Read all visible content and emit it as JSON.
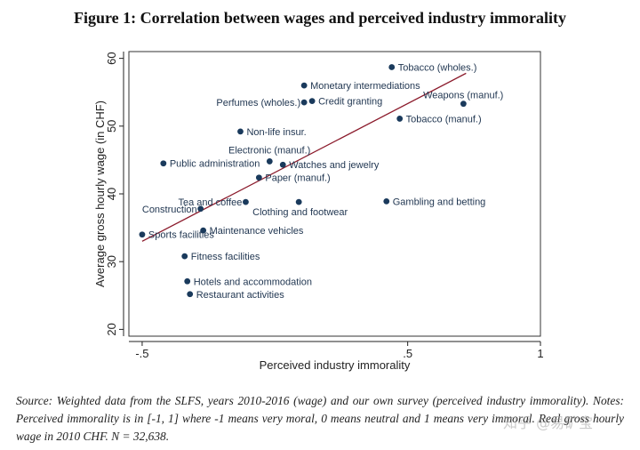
{
  "title": "Figure 1: Correlation between wages and perceived industry immorality",
  "chart_data": {
    "type": "scatter",
    "xlabel": "Perceived industry immorality",
    "ylabel": "Average gross hourly wage (in CHF)",
    "xlim": [
      -0.55,
      1.0
    ],
    "ylim": [
      19,
      61
    ],
    "xticks": [
      -0.5,
      0.5,
      1
    ],
    "xtick_labels": [
      "-.5",
      ".5",
      "1"
    ],
    "yticks": [
      20,
      30,
      40,
      50,
      60
    ],
    "grid": false,
    "marker_color": "#1a3a5c",
    "fit_line_color": "#8b1a2b",
    "fit_line": {
      "x": [
        -0.5,
        0.72
      ],
      "y": [
        33.0,
        57.8
      ]
    },
    "points": [
      {
        "label": "Tobacco (wholes.)",
        "x": 0.44,
        "y": 58.7
      },
      {
        "label": "Monetary intermediations",
        "x": 0.11,
        "y": 56.0
      },
      {
        "label": "Weapons (manuf.)",
        "x": 0.71,
        "y": 53.3
      },
      {
        "label": "Perfumes (wholes.)",
        "x": 0.11,
        "y": 53.5
      },
      {
        "label": "Credit granting",
        "x": 0.14,
        "y": 53.7
      },
      {
        "label": "Tobacco (manuf.)",
        "x": 0.47,
        "y": 51.1
      },
      {
        "label": "Non-life insur.",
        "x": -0.13,
        "y": 49.2
      },
      {
        "label": "Electronic (manuf.)",
        "x": -0.02,
        "y": 44.8
      },
      {
        "label": "Public administration",
        "x": -0.42,
        "y": 44.5
      },
      {
        "label": "Watches and jewelry",
        "x": 0.03,
        "y": 44.3
      },
      {
        "label": "Paper (manuf.)",
        "x": -0.06,
        "y": 42.4
      },
      {
        "label": "Tea and coffee",
        "x": -0.11,
        "y": 38.8
      },
      {
        "label": "Clothing and footwear",
        "x": 0.09,
        "y": 38.8
      },
      {
        "label": "Gambling and betting",
        "x": 0.42,
        "y": 38.9
      },
      {
        "label": "Construction",
        "x": -0.28,
        "y": 37.8
      },
      {
        "label": "Maintenance vehicles",
        "x": -0.27,
        "y": 34.6
      },
      {
        "label": "Sports facilities",
        "x": -0.5,
        "y": 34.0
      },
      {
        "label": "Fitness facilities",
        "x": -0.34,
        "y": 30.8
      },
      {
        "label": "Hotels and accommodation",
        "x": -0.33,
        "y": 27.1
      },
      {
        "label": "Restaurant activities",
        "x": -0.32,
        "y": 25.2
      }
    ]
  },
  "note": "Source: Weighted data from the SLFS, years 2010-2016 (wage) and our own survey (perceived industry immorality). Notes: Perceived immorality is in [-1, 1] where -1 means very moral, 0 means neutral and 1 means very immoral. Real gross hourly wage in 2010 CHF. N = 32,638.",
  "watermark": "知乎 @易矿宝"
}
